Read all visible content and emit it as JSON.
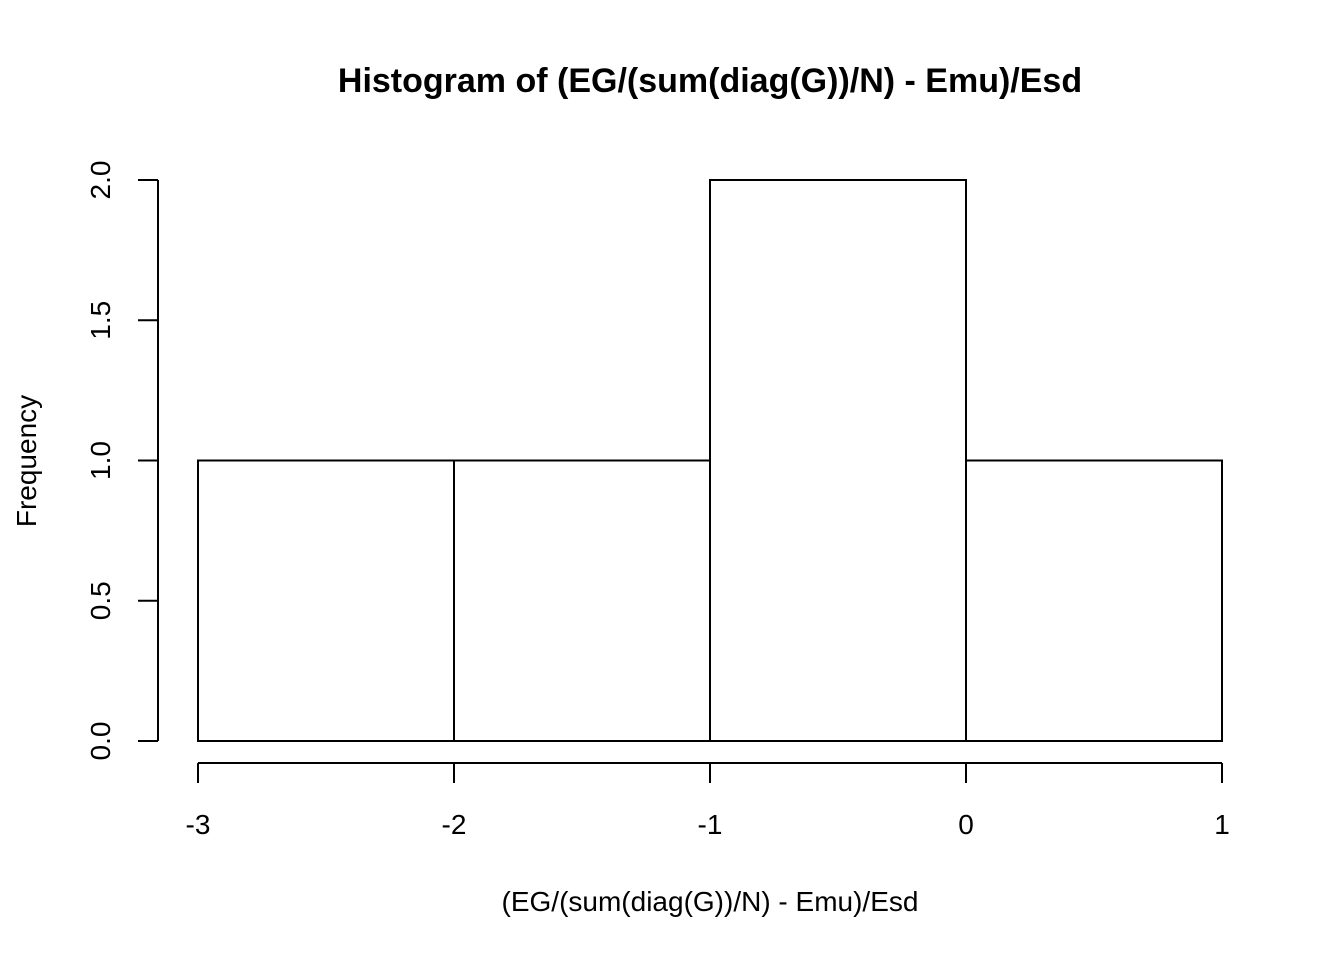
{
  "chart_data": {
    "type": "bar",
    "title": "Histogram of (EG/(sum(diag(G))/N) - Emu)/Esd",
    "xlabel": "(EG/(sum(diag(G))/N) - Emu)/Esd",
    "ylabel": "Frequency",
    "bins": [
      {
        "start": -3,
        "end": -2,
        "count": 1
      },
      {
        "start": -2,
        "end": -1,
        "count": 1
      },
      {
        "start": -1,
        "end": 0,
        "count": 2
      },
      {
        "start": 0,
        "end": 1,
        "count": 1
      }
    ],
    "x_ticks": [
      "-3",
      "-2",
      "-1",
      "0",
      "1"
    ],
    "y_ticks": [
      "0.0",
      "0.5",
      "1.0",
      "1.5",
      "2.0"
    ],
    "xlim": [
      -3,
      1
    ],
    "ylim": [
      0,
      2
    ],
    "grid": false,
    "colors": {
      "bar_fill": "#ffffff",
      "bar_stroke": "#000000"
    }
  }
}
